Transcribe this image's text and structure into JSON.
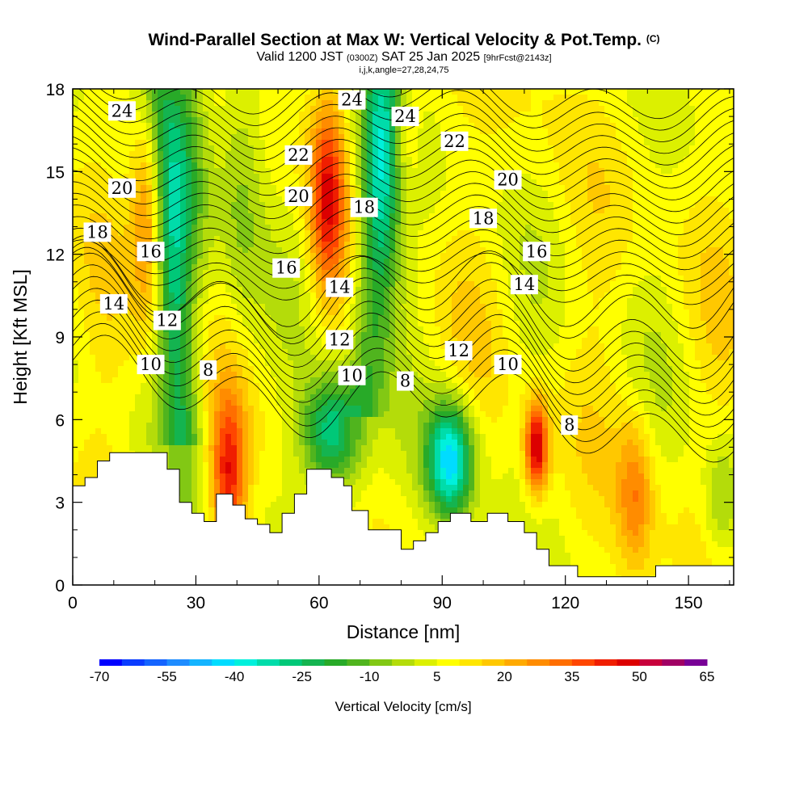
{
  "title": {
    "main": "Wind-Parallel Section at Max W: Vertical Velocity & Pot.Temp.",
    "copyright": "(C)",
    "valid_prefix": "Valid 1200 JST",
    "valid_utc": "(0300Z)",
    "valid_date": "SAT 25 Jan 2025",
    "forecast": "[9hrFcst@2143z]",
    "params": "i,j,k,angle=27,28,24,75"
  },
  "chart_data": {
    "type": "heatmap",
    "xlabel": "Distance [nm]",
    "ylabel": "Height [Kft MSL]",
    "xlim": [
      0,
      161
    ],
    "ylim": [
      0,
      18
    ],
    "xticks": [
      "0",
      "30",
      "60",
      "90",
      "120",
      "150"
    ],
    "yticks": [
      "0",
      "3",
      "6",
      "9",
      "12",
      "15",
      "18"
    ],
    "colorbar": {
      "title": "Vertical Velocity [cm/s]",
      "range": [
        -70,
        65
      ],
      "step": 5,
      "labels": [
        "-70",
        "-55",
        "-40",
        "-25",
        "-10",
        "5",
        "20",
        "35",
        "50",
        "65"
      ]
    },
    "terrain_kft": [
      [
        0,
        3.6
      ],
      [
        3,
        3.9
      ],
      [
        6,
        4.5
      ],
      [
        9,
        4.8
      ],
      [
        20,
        4.8
      ],
      [
        23,
        4.2
      ],
      [
        26,
        3.0
      ],
      [
        29,
        2.6
      ],
      [
        32,
        2.3
      ],
      [
        35,
        3.3
      ],
      [
        39,
        2.9
      ],
      [
        42,
        2.4
      ],
      [
        45,
        2.2
      ],
      [
        48,
        1.9
      ],
      [
        51,
        2.6
      ],
      [
        54,
        3.3
      ],
      [
        57,
        4.2
      ],
      [
        63,
        3.9
      ],
      [
        66,
        3.6
      ],
      [
        68,
        2.7
      ],
      [
        72,
        2.0
      ],
      [
        80,
        1.3
      ],
      [
        83,
        1.6
      ],
      [
        86,
        1.9
      ],
      [
        89,
        2.3
      ],
      [
        92,
        2.6
      ],
      [
        97,
        2.3
      ],
      [
        101,
        2.6
      ],
      [
        106,
        2.3
      ],
      [
        110,
        1.9
      ],
      [
        113,
        1.3
      ],
      [
        116,
        0.7
      ],
      [
        123,
        0.3
      ],
      [
        142,
        0.7
      ],
      [
        161,
        0.7
      ]
    ],
    "vertical_velocity_features": [
      {
        "x": 19,
        "y": 14.0,
        "sx": 3,
        "sy": 3.0,
        "v": 35
      },
      {
        "x": 26,
        "y": 15.5,
        "sx": 5,
        "sy": 4.5,
        "v": -25
      },
      {
        "x": 38,
        "y": 4.0,
        "sx": 3,
        "sy": 2.0,
        "v": 35
      },
      {
        "x": 41,
        "y": 14.5,
        "sx": 4,
        "sy": 4.0,
        "v": -15
      },
      {
        "x": 62,
        "y": 14.0,
        "sx": 3,
        "sy": 2.5,
        "v": 35
      },
      {
        "x": 63,
        "y": 5.5,
        "sx": 5,
        "sy": 1.5,
        "v": -40
      },
      {
        "x": 75,
        "y": 15.5,
        "sx": 4,
        "sy": 3.5,
        "v": -30
      },
      {
        "x": 80,
        "y": 16.5,
        "sx": 3,
        "sy": 2.0,
        "v": 20
      },
      {
        "x": 92,
        "y": 4.5,
        "sx": 4,
        "sy": 1.5,
        "v": -50
      },
      {
        "x": 113,
        "y": 5.0,
        "sx": 2,
        "sy": 1.2,
        "v": 45
      },
      {
        "x": 137,
        "y": 3.3,
        "sx": 3,
        "sy": 2.0,
        "v": 20
      },
      {
        "x": 158,
        "y": 3.0,
        "sx": 3,
        "sy": 1.5,
        "v": -15
      }
    ],
    "theta_contours": [
      {
        "value": 8,
        "base_kft": 7.6
      },
      {
        "value": 10,
        "base_kft": 8.1
      },
      {
        "value": 12,
        "base_kft": 9.2
      },
      {
        "value": 14,
        "base_kft": 10.3
      },
      {
        "value": 16,
        "base_kft": 11.6
      },
      {
        "value": 18,
        "base_kft": 12.7
      },
      {
        "value": 20,
        "base_kft": 14.3
      },
      {
        "value": 22,
        "base_kft": 15.7
      },
      {
        "value": 24,
        "base_kft": 17.3
      }
    ],
    "contour_labels": [
      {
        "text": "24",
        "x": 12,
        "y": 17.2
      },
      {
        "text": "24",
        "x": 68,
        "y": 17.6
      },
      {
        "text": "24",
        "x": 81,
        "y": 17.0
      },
      {
        "text": "22",
        "x": 55,
        "y": 15.6
      },
      {
        "text": "22",
        "x": 93,
        "y": 16.1
      },
      {
        "text": "20",
        "x": 12,
        "y": 14.4
      },
      {
        "text": "20",
        "x": 55,
        "y": 14.1
      },
      {
        "text": "20",
        "x": 106,
        "y": 14.7
      },
      {
        "text": "18",
        "x": 6,
        "y": 12.8
      },
      {
        "text": "18",
        "x": 71,
        "y": 13.7
      },
      {
        "text": "18",
        "x": 100,
        "y": 13.3
      },
      {
        "text": "16",
        "x": 19,
        "y": 12.1
      },
      {
        "text": "16",
        "x": 52,
        "y": 11.5
      },
      {
        "text": "16",
        "x": 113,
        "y": 12.1
      },
      {
        "text": "14",
        "x": 10,
        "y": 10.2
      },
      {
        "text": "14",
        "x": 65,
        "y": 10.8
      },
      {
        "text": "14",
        "x": 110,
        "y": 10.9
      },
      {
        "text": "12",
        "x": 23,
        "y": 9.6
      },
      {
        "text": "12",
        "x": 65,
        "y": 8.9
      },
      {
        "text": "12",
        "x": 94,
        "y": 8.5
      },
      {
        "text": "10",
        "x": 19,
        "y": 8.0
      },
      {
        "text": "10",
        "x": 68,
        "y": 7.6
      },
      {
        "text": "10",
        "x": 106,
        "y": 8.0
      },
      {
        "text": "8",
        "x": 33,
        "y": 7.8
      },
      {
        "text": "8",
        "x": 81,
        "y": 7.4
      },
      {
        "text": "8",
        "x": 121,
        "y": 5.8
      }
    ]
  }
}
